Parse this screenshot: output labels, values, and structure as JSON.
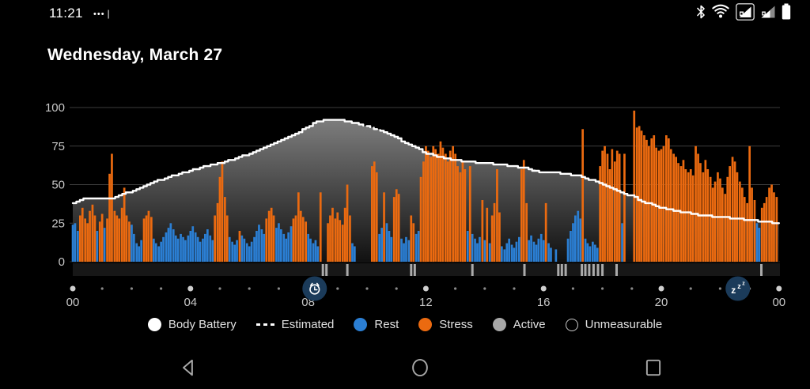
{
  "status_bar": {
    "time": "11:21",
    "mini_indicator": "•••❘",
    "right_icons": [
      "bluetooth",
      "wifi",
      "cellular-signal-1",
      "cellular-signal-2",
      "battery"
    ]
  },
  "header": {
    "title": "Wednesday, March 27"
  },
  "colors": {
    "background": "#000000",
    "rest": "#2b7fd4",
    "stress": "#eb6a10",
    "active": "#ababab",
    "line": "#ffffff",
    "grid": "#3d3d3d",
    "axis_text": "#c8c8c8",
    "area_top": "#7d7d7d",
    "area_bottom": "#111111",
    "baseline_strip": "#171717",
    "event_bg": "#1b3b5a",
    "dot_major": "#cfcfcf",
    "dot_minor": "#8a8a8a",
    "nav_icon": "#a8a8a8"
  },
  "chart_data": {
    "type": "area+bar",
    "title": "Body Battery day view",
    "ylim": [
      0,
      100
    ],
    "yticks": [
      0,
      25,
      50,
      75,
      100
    ],
    "xlim_hours": [
      0,
      24
    ],
    "xtick_labels": [
      {
        "h": 0,
        "label": "00"
      },
      {
        "h": 4,
        "label": "04"
      },
      {
        "h": 8,
        "label": "08"
      },
      {
        "h": 12,
        "label": "12"
      },
      {
        "h": 16,
        "label": "16"
      },
      {
        "h": 20,
        "label": "20"
      },
      {
        "h": 24,
        "label": "00"
      }
    ],
    "layout": {
      "plot_left": 92,
      "plot_right": 986,
      "hour_width": 37.2,
      "top_pad": 6,
      "unit_height": 1.95
    },
    "body_battery_line": [
      [
        0,
        38
      ],
      [
        0.2,
        39
      ],
      [
        0.35,
        41
      ],
      [
        1.3,
        41
      ],
      [
        1.6,
        43
      ],
      [
        2,
        46
      ],
      [
        2.4,
        49
      ],
      [
        2.8,
        52
      ],
      [
        3.2,
        54.5
      ],
      [
        3.6,
        57
      ],
      [
        4,
        59
      ],
      [
        4.4,
        61.5
      ],
      [
        4.8,
        63
      ],
      [
        5.2,
        65
      ],
      [
        5.6,
        67.5
      ],
      [
        6,
        70
      ],
      [
        6.4,
        73
      ],
      [
        6.8,
        76.5
      ],
      [
        7.2,
        80
      ],
      [
        7.6,
        83
      ],
      [
        8,
        88
      ],
      [
        8.3,
        91
      ],
      [
        8.6,
        92
      ],
      [
        9,
        92
      ],
      [
        9.3,
        91
      ],
      [
        9.75,
        89
      ],
      [
        10.45,
        85
      ],
      [
        11,
        80
      ],
      [
        11.5,
        75
      ],
      [
        12,
        70.5
      ],
      [
        12.6,
        67
      ],
      [
        13.1,
        65.5
      ],
      [
        13.7,
        64.3
      ],
      [
        14.5,
        63
      ],
      [
        15.3,
        61
      ],
      [
        15.8,
        58.5
      ],
      [
        16.6,
        57.4
      ],
      [
        17.15,
        55.8
      ],
      [
        17.7,
        52.2
      ],
      [
        18.25,
        48
      ],
      [
        18.8,
        43.6
      ],
      [
        19.05,
        42
      ],
      [
        19.3,
        39.3
      ],
      [
        19.85,
        35.8
      ],
      [
        20.4,
        33.2
      ],
      [
        20.9,
        31.5
      ],
      [
        21.45,
        29.8
      ],
      [
        22,
        28.9
      ],
      [
        22.5,
        28
      ],
      [
        23.05,
        26.8
      ],
      [
        23.6,
        25.8
      ],
      [
        24,
        25
      ]
    ],
    "estimated_range": [
      9.75,
      10.45
    ],
    "bars": [
      [
        0.0,
        24,
        "r"
      ],
      [
        0.08,
        25,
        "r"
      ],
      [
        0.17,
        20,
        "r"
      ],
      [
        0.25,
        30,
        "s"
      ],
      [
        0.33,
        35,
        "s"
      ],
      [
        0.42,
        28,
        "s"
      ],
      [
        0.5,
        25,
        "s"
      ],
      [
        0.58,
        33,
        "s"
      ],
      [
        0.67,
        37,
        "s"
      ],
      [
        0.75,
        30,
        "s"
      ],
      [
        0.83,
        20,
        "r"
      ],
      [
        0.92,
        26,
        "s"
      ],
      [
        1.0,
        31,
        "s"
      ],
      [
        1.08,
        22,
        "r"
      ],
      [
        1.17,
        28,
        "s"
      ],
      [
        1.25,
        57,
        "s"
      ],
      [
        1.33,
        70,
        "s"
      ],
      [
        1.42,
        33,
        "s"
      ],
      [
        1.5,
        30,
        "s"
      ],
      [
        1.58,
        28,
        "s"
      ],
      [
        1.67,
        35,
        "s"
      ],
      [
        1.75,
        48,
        "s"
      ],
      [
        1.83,
        30,
        "s"
      ],
      [
        1.92,
        26,
        "s"
      ],
      [
        2.0,
        24,
        "r"
      ],
      [
        2.08,
        18,
        "r"
      ],
      [
        2.17,
        12,
        "r"
      ],
      [
        2.25,
        10,
        "r"
      ],
      [
        2.33,
        14,
        "r"
      ],
      [
        2.42,
        28,
        "s"
      ],
      [
        2.5,
        30,
        "s"
      ],
      [
        2.58,
        33,
        "s"
      ],
      [
        2.67,
        29,
        "s"
      ],
      [
        2.75,
        15,
        "r"
      ],
      [
        2.83,
        12,
        "r"
      ],
      [
        2.92,
        10,
        "r"
      ],
      [
        3.0,
        13,
        "r"
      ],
      [
        3.08,
        16,
        "r"
      ],
      [
        3.17,
        19,
        "r"
      ],
      [
        3.25,
        22,
        "r"
      ],
      [
        3.33,
        25,
        "r"
      ],
      [
        3.42,
        21,
        "r"
      ],
      [
        3.5,
        17,
        "r"
      ],
      [
        3.58,
        15,
        "r"
      ],
      [
        3.67,
        18,
        "r"
      ],
      [
        3.75,
        16,
        "r"
      ],
      [
        3.83,
        14,
        "r"
      ],
      [
        3.92,
        17,
        "r"
      ],
      [
        4.0,
        20,
        "r"
      ],
      [
        4.08,
        23,
        "r"
      ],
      [
        4.17,
        19,
        "r"
      ],
      [
        4.25,
        16,
        "r"
      ],
      [
        4.33,
        13,
        "r"
      ],
      [
        4.42,
        15,
        "r"
      ],
      [
        4.5,
        18,
        "r"
      ],
      [
        4.58,
        21,
        "r"
      ],
      [
        4.67,
        17,
        "r"
      ],
      [
        4.75,
        14,
        "r"
      ],
      [
        4.83,
        30,
        "s"
      ],
      [
        4.92,
        38,
        "s"
      ],
      [
        5.0,
        55,
        "s"
      ],
      [
        5.08,
        65,
        "s"
      ],
      [
        5.17,
        42,
        "s"
      ],
      [
        5.25,
        30,
        "s"
      ],
      [
        5.33,
        16,
        "r"
      ],
      [
        5.42,
        13,
        "r"
      ],
      [
        5.5,
        11,
        "r"
      ],
      [
        5.58,
        14,
        "r"
      ],
      [
        5.67,
        20,
        "s"
      ],
      [
        5.75,
        17,
        "r"
      ],
      [
        5.83,
        15,
        "r"
      ],
      [
        5.92,
        12,
        "r"
      ],
      [
        6.0,
        10,
        "r"
      ],
      [
        6.08,
        13,
        "r"
      ],
      [
        6.17,
        16,
        "r"
      ],
      [
        6.25,
        20,
        "r"
      ],
      [
        6.33,
        24,
        "r"
      ],
      [
        6.42,
        21,
        "r"
      ],
      [
        6.5,
        18,
        "r"
      ],
      [
        6.58,
        28,
        "s"
      ],
      [
        6.67,
        33,
        "s"
      ],
      [
        6.75,
        35,
        "s"
      ],
      [
        6.83,
        30,
        "s"
      ],
      [
        6.92,
        22,
        "r"
      ],
      [
        7.0,
        25,
        "r"
      ],
      [
        7.08,
        21,
        "r"
      ],
      [
        7.17,
        18,
        "r"
      ],
      [
        7.25,
        15,
        "r"
      ],
      [
        7.33,
        19,
        "r"
      ],
      [
        7.42,
        23,
        "r"
      ],
      [
        7.5,
        28,
        "s"
      ],
      [
        7.58,
        30,
        "s"
      ],
      [
        7.67,
        45,
        "s"
      ],
      [
        7.75,
        33,
        "s"
      ],
      [
        7.83,
        29,
        "s"
      ],
      [
        7.92,
        26,
        "s"
      ],
      [
        8.0,
        18,
        "r"
      ],
      [
        8.08,
        15,
        "r"
      ],
      [
        8.17,
        12,
        "r"
      ],
      [
        8.25,
        14,
        "r"
      ],
      [
        8.33,
        10,
        "r"
      ],
      [
        8.42,
        45,
        "s"
      ],
      [
        8.67,
        25,
        "s"
      ],
      [
        8.75,
        30,
        "s"
      ],
      [
        8.83,
        35,
        "s"
      ],
      [
        8.92,
        28,
        "s"
      ],
      [
        9.0,
        32,
        "s"
      ],
      [
        9.08,
        27,
        "s"
      ],
      [
        9.17,
        24,
        "s"
      ],
      [
        9.25,
        35,
        "s"
      ],
      [
        9.33,
        50,
        "s"
      ],
      [
        9.42,
        30,
        "s"
      ],
      [
        9.5,
        12,
        "r"
      ],
      [
        9.58,
        10,
        "r"
      ],
      [
        10.17,
        62,
        "s"
      ],
      [
        10.25,
        65,
        "s"
      ],
      [
        10.33,
        58,
        "s"
      ],
      [
        10.42,
        18,
        "r"
      ],
      [
        10.5,
        22,
        "r"
      ],
      [
        10.58,
        45,
        "s"
      ],
      [
        10.67,
        25,
        "r"
      ],
      [
        10.75,
        20,
        "r"
      ],
      [
        10.83,
        16,
        "r"
      ],
      [
        10.92,
        42,
        "s"
      ],
      [
        11.0,
        47,
        "s"
      ],
      [
        11.08,
        44,
        "s"
      ],
      [
        11.17,
        15,
        "r"
      ],
      [
        11.25,
        12,
        "r"
      ],
      [
        11.33,
        16,
        "r"
      ],
      [
        11.42,
        14,
        "r"
      ],
      [
        11.5,
        30,
        "s"
      ],
      [
        11.58,
        25,
        "s"
      ],
      [
        11.67,
        18,
        "r"
      ],
      [
        11.75,
        20,
        "r"
      ],
      [
        11.83,
        55,
        "s"
      ],
      [
        11.92,
        65,
        "s"
      ],
      [
        12.0,
        75,
        "s"
      ],
      [
        12.08,
        72,
        "s"
      ],
      [
        12.17,
        68,
        "s"
      ],
      [
        12.25,
        75,
        "s"
      ],
      [
        12.33,
        73,
        "s"
      ],
      [
        12.42,
        70,
        "s"
      ],
      [
        12.5,
        78,
        "s"
      ],
      [
        12.58,
        74,
        "s"
      ],
      [
        12.67,
        70,
        "s"
      ],
      [
        12.75,
        65,
        "s"
      ],
      [
        12.83,
        72,
        "s"
      ],
      [
        12.92,
        75,
        "s"
      ],
      [
        13.0,
        70,
        "s"
      ],
      [
        13.08,
        62,
        "s"
      ],
      [
        13.17,
        58,
        "s"
      ],
      [
        13.25,
        65,
        "s"
      ],
      [
        13.33,
        60,
        "s"
      ],
      [
        13.42,
        20,
        "r"
      ],
      [
        13.5,
        62,
        "s"
      ],
      [
        13.58,
        18,
        "r"
      ],
      [
        13.67,
        15,
        "r"
      ],
      [
        13.75,
        12,
        "r"
      ],
      [
        13.83,
        16,
        "r"
      ],
      [
        13.92,
        40,
        "s"
      ],
      [
        14.0,
        14,
        "r"
      ],
      [
        14.08,
        35,
        "s"
      ],
      [
        14.17,
        12,
        "r"
      ],
      [
        14.25,
        30,
        "s"
      ],
      [
        14.33,
        38,
        "s"
      ],
      [
        14.42,
        60,
        "s"
      ],
      [
        14.5,
        32,
        "s"
      ],
      [
        14.58,
        10,
        "r"
      ],
      [
        14.67,
        8,
        "r"
      ],
      [
        14.75,
        12,
        "r"
      ],
      [
        14.83,
        15,
        "r"
      ],
      [
        14.92,
        11,
        "r"
      ],
      [
        15.0,
        9,
        "r"
      ],
      [
        15.08,
        13,
        "r"
      ],
      [
        15.17,
        16,
        "r"
      ],
      [
        15.25,
        60,
        "s"
      ],
      [
        15.33,
        66,
        "s"
      ],
      [
        15.42,
        38,
        "s"
      ],
      [
        15.5,
        14,
        "r"
      ],
      [
        15.58,
        17,
        "r"
      ],
      [
        15.67,
        13,
        "r"
      ],
      [
        15.75,
        11,
        "r"
      ],
      [
        15.83,
        15,
        "r"
      ],
      [
        15.92,
        18,
        "r"
      ],
      [
        16.0,
        14,
        "r"
      ],
      [
        16.08,
        38,
        "s"
      ],
      [
        16.17,
        12,
        "r"
      ],
      [
        16.25,
        9,
        "r"
      ],
      [
        16.42,
        8,
        "r"
      ],
      [
        16.83,
        15,
        "r"
      ],
      [
        16.92,
        20,
        "r"
      ],
      [
        17.0,
        25,
        "r"
      ],
      [
        17.08,
        30,
        "r"
      ],
      [
        17.17,
        33,
        "r"
      ],
      [
        17.25,
        28,
        "r"
      ],
      [
        17.33,
        86,
        "s"
      ],
      [
        17.42,
        15,
        "r"
      ],
      [
        17.5,
        12,
        "r"
      ],
      [
        17.58,
        10,
        "r"
      ],
      [
        17.67,
        13,
        "r"
      ],
      [
        17.75,
        11,
        "r"
      ],
      [
        17.83,
        9,
        "r"
      ],
      [
        17.92,
        62,
        "s"
      ],
      [
        18.0,
        72,
        "s"
      ],
      [
        18.08,
        75,
        "s"
      ],
      [
        18.17,
        70,
        "s"
      ],
      [
        18.25,
        60,
        "s"
      ],
      [
        18.33,
        73,
        "s"
      ],
      [
        18.42,
        65,
        "s"
      ],
      [
        18.5,
        72,
        "s"
      ],
      [
        18.58,
        70,
        "s"
      ],
      [
        18.67,
        25,
        "r"
      ],
      [
        18.75,
        70,
        "s"
      ],
      [
        19.08,
        98,
        "s"
      ],
      [
        19.17,
        87,
        "s"
      ],
      [
        19.25,
        88,
        "s"
      ],
      [
        19.33,
        85,
        "s"
      ],
      [
        19.42,
        82,
        "s"
      ],
      [
        19.5,
        79,
        "s"
      ],
      [
        19.58,
        75,
        "s"
      ],
      [
        19.67,
        80,
        "s"
      ],
      [
        19.75,
        82,
        "s"
      ],
      [
        19.83,
        74,
        "s"
      ],
      [
        19.92,
        72,
        "s"
      ],
      [
        20.0,
        73,
        "s"
      ],
      [
        20.08,
        75,
        "s"
      ],
      [
        20.17,
        82,
        "s"
      ],
      [
        20.25,
        80,
        "s"
      ],
      [
        20.33,
        73,
        "s"
      ],
      [
        20.42,
        70,
        "s"
      ],
      [
        20.5,
        68,
        "s"
      ],
      [
        20.58,
        64,
        "s"
      ],
      [
        20.67,
        62,
        "s"
      ],
      [
        20.75,
        66,
        "s"
      ],
      [
        20.83,
        60,
        "s"
      ],
      [
        20.92,
        58,
        "s"
      ],
      [
        21.0,
        60,
        "s"
      ],
      [
        21.08,
        56,
        "s"
      ],
      [
        21.17,
        75,
        "s"
      ],
      [
        21.25,
        70,
        "s"
      ],
      [
        21.33,
        64,
        "s"
      ],
      [
        21.42,
        58,
        "s"
      ],
      [
        21.5,
        66,
        "s"
      ],
      [
        21.58,
        60,
        "s"
      ],
      [
        21.67,
        55,
        "s"
      ],
      [
        21.75,
        48,
        "s"
      ],
      [
        21.83,
        52,
        "s"
      ],
      [
        21.92,
        58,
        "s"
      ],
      [
        22.0,
        54,
        "s"
      ],
      [
        22.08,
        48,
        "s"
      ],
      [
        22.17,
        44,
        "s"
      ],
      [
        22.25,
        55,
        "s"
      ],
      [
        22.33,
        62,
        "s"
      ],
      [
        22.42,
        68,
        "s"
      ],
      [
        22.5,
        65,
        "s"
      ],
      [
        22.58,
        58,
        "s"
      ],
      [
        22.67,
        52,
        "s"
      ],
      [
        22.75,
        48,
        "s"
      ],
      [
        22.83,
        42,
        "s"
      ],
      [
        22.92,
        38,
        "s"
      ],
      [
        23.0,
        75,
        "s"
      ],
      [
        23.08,
        48,
        "s"
      ],
      [
        23.17,
        40,
        "s"
      ],
      [
        23.25,
        25,
        "r"
      ],
      [
        23.33,
        22,
        "r"
      ],
      [
        23.42,
        35,
        "s"
      ],
      [
        23.5,
        38,
        "s"
      ],
      [
        23.58,
        42,
        "s"
      ],
      [
        23.67,
        48,
        "s"
      ],
      [
        23.75,
        50,
        "s"
      ],
      [
        23.83,
        45,
        "s"
      ],
      [
        23.92,
        42,
        "s"
      ]
    ],
    "active_marks_hours": [
      8.5,
      8.62,
      9.33,
      11.5,
      11.62,
      13.58,
      15.35,
      16.5,
      16.62,
      16.75,
      17.3,
      17.42,
      17.55,
      17.7,
      17.85,
      18.0,
      18.48,
      23.4
    ],
    "events": [
      {
        "h": 8.22,
        "icon": "alarm"
      },
      {
        "h": 22.6,
        "icon": "sleep"
      }
    ]
  },
  "legend": {
    "items": [
      {
        "label": "Body Battery",
        "swatch": "dot",
        "color": "#ffffff"
      },
      {
        "label": "Estimated",
        "swatch": "dash",
        "color": "#ffffff"
      },
      {
        "label": "Rest",
        "swatch": "dot",
        "color": "#2b7fd4"
      },
      {
        "label": "Stress",
        "swatch": "dot",
        "color": "#eb6a10"
      },
      {
        "label": "Active",
        "swatch": "dot",
        "color": "#a8a8a8"
      },
      {
        "label": "Unmeasurable",
        "swatch": "outline",
        "color": "#c8c8c8"
      }
    ]
  },
  "nav_bar": {
    "back": "Back",
    "home": "Home",
    "recents": "Recents"
  }
}
